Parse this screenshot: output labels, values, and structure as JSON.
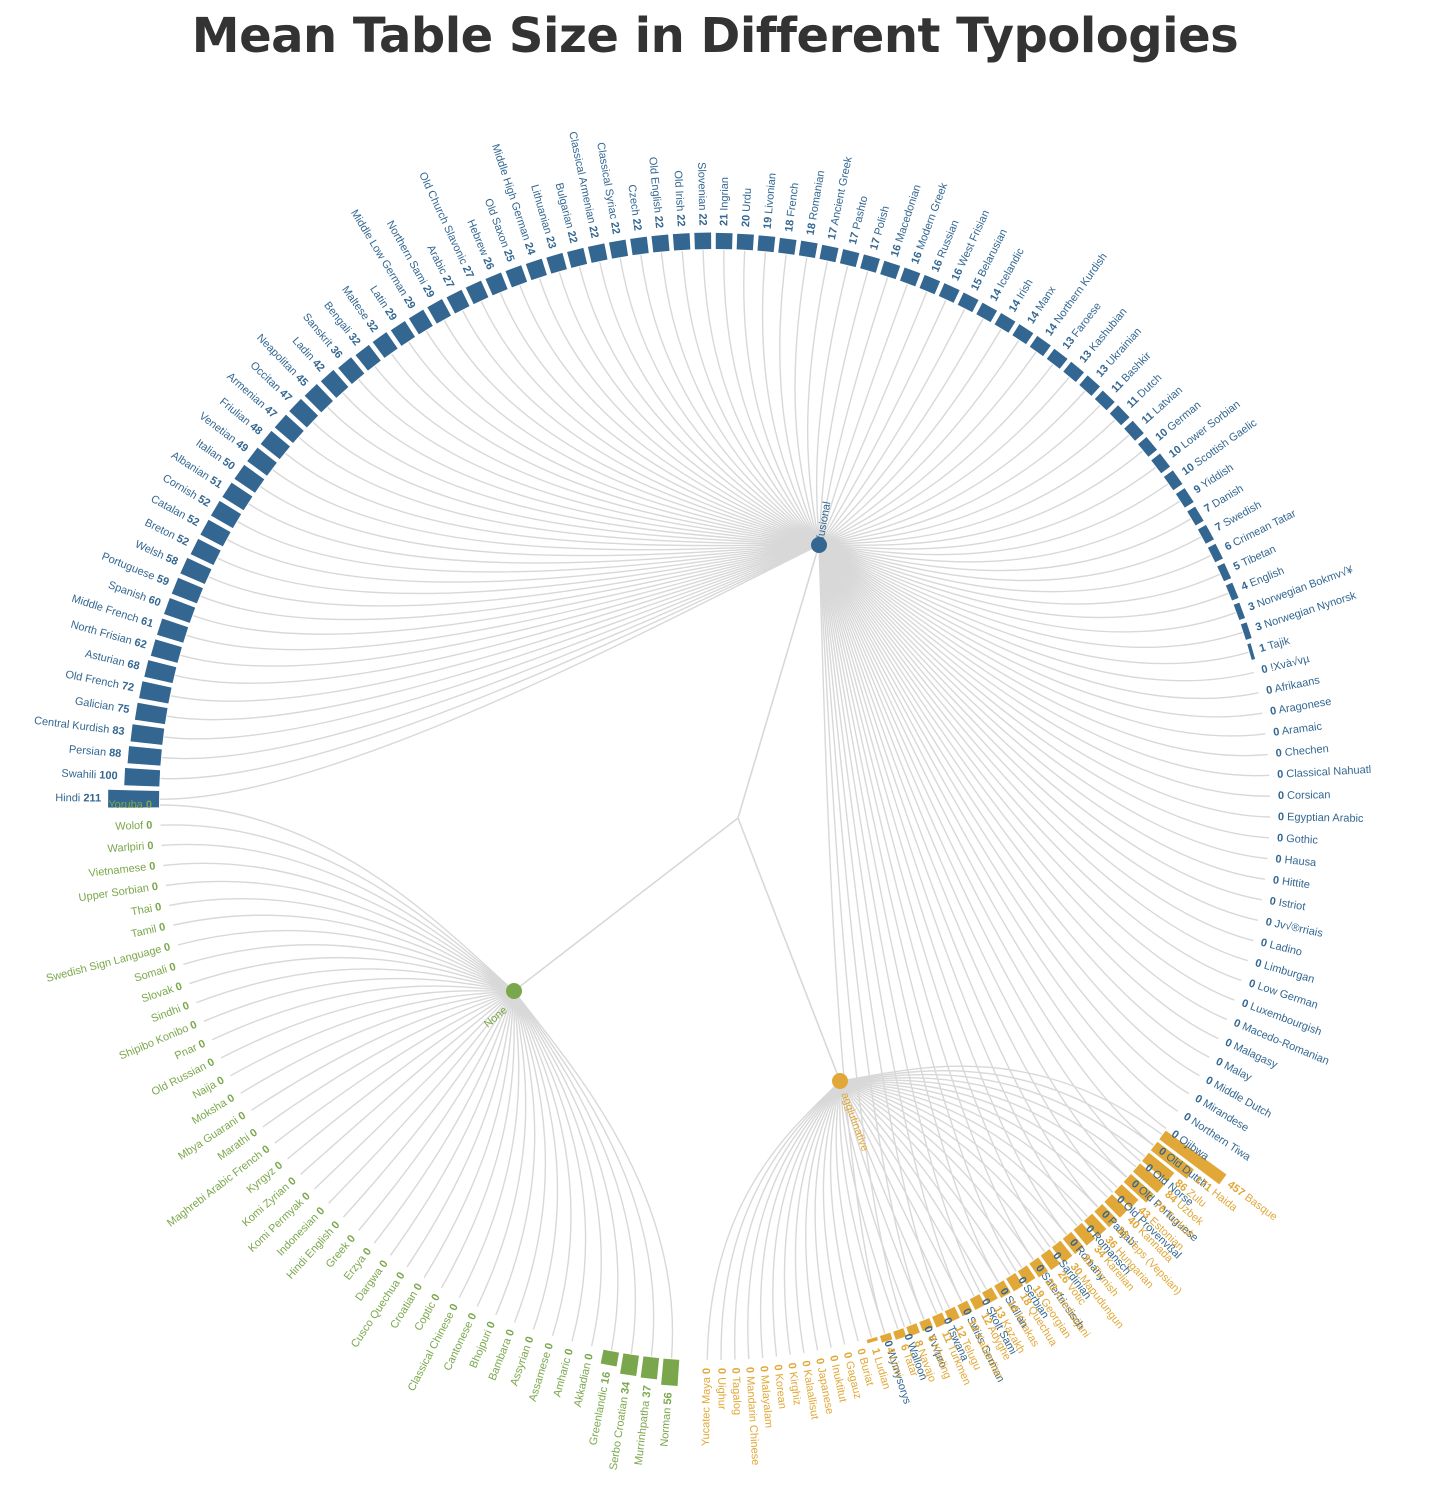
{
  "chart_data": {
    "type": "radial-dendrogram",
    "title": "Mean Table Size in Different Typologies",
    "colors": {
      "fusional": "#336791",
      "None": "#7ba74c",
      "agglutinative": "#e1a837",
      "link": "#d8d8d8",
      "title": "#333333"
    },
    "groups": [
      {
        "name": "fusional",
        "color": "#336791",
        "leaves": [
          {
            "label": "Hindi",
            "value": 211
          },
          {
            "label": "Swahili",
            "value": 100
          },
          {
            "label": "Persian",
            "value": 88
          },
          {
            "label": "Central Kurdish",
            "value": 83
          },
          {
            "label": "Galician",
            "value": 75
          },
          {
            "label": "Old French",
            "value": 72
          },
          {
            "label": "Asturian",
            "value": 68
          },
          {
            "label": "North Frisian",
            "value": 62
          },
          {
            "label": "Middle French",
            "value": 61
          },
          {
            "label": "Spanish",
            "value": 60
          },
          {
            "label": "Portuguese",
            "value": 59
          },
          {
            "label": "Welsh",
            "value": 58
          },
          {
            "label": "Breton",
            "value": 52
          },
          {
            "label": "Catalan",
            "value": 52
          },
          {
            "label": "Cornish",
            "value": 52
          },
          {
            "label": "Albanian",
            "value": 51
          },
          {
            "label": "Italian",
            "value": 50
          },
          {
            "label": "Venetian",
            "value": 49
          },
          {
            "label": "Friulian",
            "value": 48
          },
          {
            "label": "Armenian",
            "value": 47
          },
          {
            "label": "Occitan",
            "value": 47
          },
          {
            "label": "Neapolitan",
            "value": 45
          },
          {
            "label": "Ladin",
            "value": 42
          },
          {
            "label": "Sanskrit",
            "value": 36
          },
          {
            "label": "Bengali",
            "value": 32
          },
          {
            "label": "Maltese",
            "value": 32
          },
          {
            "label": "Latin",
            "value": 29
          },
          {
            "label": "Middle Low German",
            "value": 29
          },
          {
            "label": "Northern Sami",
            "value": 29
          },
          {
            "label": "Arabic",
            "value": 27
          },
          {
            "label": "Old Church Slavonic",
            "value": 27
          },
          {
            "label": "Hebrew",
            "value": 26
          },
          {
            "label": "Old Saxon",
            "value": 25
          },
          {
            "label": "Middle High German",
            "value": 24
          },
          {
            "label": "Lithuanian",
            "value": 23
          },
          {
            "label": "Bulgarian",
            "value": 22
          },
          {
            "label": "Classical Armenian",
            "value": 22
          },
          {
            "label": "Classical Syriac",
            "value": 22
          },
          {
            "label": "Czech",
            "value": 22
          },
          {
            "label": "Old English",
            "value": 22
          },
          {
            "label": "Old Irish",
            "value": 22
          },
          {
            "label": "Slovenian",
            "value": 22
          },
          {
            "label": "Ingrian",
            "value": 21
          },
          {
            "label": "Urdu",
            "value": 20
          },
          {
            "label": "Livonian",
            "value": 19
          },
          {
            "label": "French",
            "value": 18
          },
          {
            "label": "Romanian",
            "value": 18
          },
          {
            "label": "Ancient Greek",
            "value": 17
          },
          {
            "label": "Pashto",
            "value": 17
          },
          {
            "label": "Polish",
            "value": 17
          },
          {
            "label": "Macedonian",
            "value": 16
          },
          {
            "label": "Modern Greek",
            "value": 16
          },
          {
            "label": "Russian",
            "value": 16
          },
          {
            "label": "West Frisian",
            "value": 16
          },
          {
            "label": "Belarusian",
            "value": 15
          },
          {
            "label": "Icelandic",
            "value": 14
          },
          {
            "label": "Irish",
            "value": 14
          },
          {
            "label": "Manx",
            "value": 14
          },
          {
            "label": "Northern Kurdish",
            "value": 14
          },
          {
            "label": "Faroese",
            "value": 13
          },
          {
            "label": "Kashubian",
            "value": 13
          },
          {
            "label": "Ukrainian",
            "value": 13
          },
          {
            "label": "Bashkir",
            "value": 11
          },
          {
            "label": "Dutch",
            "value": 11
          },
          {
            "label": "Latvian",
            "value": 11
          },
          {
            "label": "German",
            "value": 10
          },
          {
            "label": "Lower Sorbian",
            "value": 10
          },
          {
            "label": "Scottish Gaelic",
            "value": 10
          },
          {
            "label": "Yiddish",
            "value": 9
          },
          {
            "label": "Danish",
            "value": 7
          },
          {
            "label": "Swedish",
            "value": 7
          },
          {
            "label": "Crimean Tatar",
            "value": 6
          },
          {
            "label": "Tibetan",
            "value": 5
          },
          {
            "label": "English",
            "value": 4
          },
          {
            "label": "Norwegian Bokmv√¥",
            "value": 3
          },
          {
            "label": "Norwegian Nynorsk",
            "value": 3
          },
          {
            "label": "Tajik",
            "value": 1
          },
          {
            "label": "!Xvà√vµ",
            "value": 0
          },
          {
            "label": "Afrikaans",
            "value": 0
          },
          {
            "label": "Aragonese",
            "value": 0
          },
          {
            "label": "Aramaic",
            "value": 0
          },
          {
            "label": "Chechen",
            "value": 0
          },
          {
            "label": "Classical Nahuatl",
            "value": 0
          },
          {
            "label": "Corsican",
            "value": 0
          },
          {
            "label": "Egyptian Arabic",
            "value": 0
          },
          {
            "label": "Gothic",
            "value": 0
          },
          {
            "label": "Hausa",
            "value": 0
          },
          {
            "label": "Hittite",
            "value": 0
          },
          {
            "label": "Istriot",
            "value": 0
          },
          {
            "label": "Jv√®rriais",
            "value": 0
          },
          {
            "label": "Ladino",
            "value": 0
          },
          {
            "label": "Limburgan",
            "value": 0
          },
          {
            "label": "Low German",
            "value": 0
          },
          {
            "label": "Luxembourgish",
            "value": 0
          },
          {
            "label": "Macedo-Romanian",
            "value": 0
          },
          {
            "label": "Malagasy",
            "value": 0
          },
          {
            "label": "Malay",
            "value": 0
          },
          {
            "label": "Middle Dutch",
            "value": 0
          },
          {
            "label": "Mirandese",
            "value": 0
          },
          {
            "label": "Northern Tiwa",
            "value": 0
          },
          {
            "label": "Ojibwa",
            "value": 0
          },
          {
            "label": "Old Dutch",
            "value": 0
          },
          {
            "label": "Old Norse",
            "value": 0
          },
          {
            "label": "Old Portuguese",
            "value": 0
          },
          {
            "label": "Old Provenvßal",
            "value": 0
          },
          {
            "label": "Panjabi",
            "value": 0
          },
          {
            "label": "Romansch",
            "value": 0
          },
          {
            "label": "Romany",
            "value": 0
          },
          {
            "label": "Sardinian",
            "value": 0
          },
          {
            "label": "Saterfriesisch",
            "value": 0
          },
          {
            "label": "Serbian",
            "value": 0
          },
          {
            "label": "Sicilian",
            "value": 0
          },
          {
            "label": "Skolt Sami",
            "value": 0
          },
          {
            "label": "Swiss German",
            "value": 0
          },
          {
            "label": "Tswana",
            "value": 0
          },
          {
            "label": "Vv√µro",
            "value": 0
          },
          {
            "label": "Walloon",
            "value": 0
          },
          {
            "label": "Wymysorys",
            "value": 0
          }
        ]
      },
      {
        "name": "agglutinative",
        "color": "#e1a837",
        "leaves": [
          {
            "label": "Basque",
            "value": 457
          },
          {
            "label": "Haida",
            "value": 171
          },
          {
            "label": "Zulu",
            "value": 86
          },
          {
            "label": "Uzbek",
            "value": 84
          },
          {
            "label": "Turkish",
            "value": 76
          },
          {
            "label": "Estonian",
            "value": 43
          },
          {
            "label": "Kannada",
            "value": 40
          },
          {
            "label": "Veps (Vepsian)",
            "value": 38
          },
          {
            "label": "Hungarian",
            "value": 36
          },
          {
            "label": "Karelian",
            "value": 34
          },
          {
            "label": "Finnish",
            "value": 31
          },
          {
            "label": "Mapudungun",
            "value": 30
          },
          {
            "label": "Votic",
            "value": 26
          },
          {
            "label": "Azerbaijani",
            "value": 23
          },
          {
            "label": "Georgian",
            "value": 19
          },
          {
            "label": "Quechua",
            "value": 18
          },
          {
            "label": "Khakas",
            "value": 16
          },
          {
            "label": "Kazakh",
            "value": 13
          },
          {
            "label": "Adyghe",
            "value": 12
          },
          {
            "label": "Kabardian",
            "value": 12
          },
          {
            "label": "Telugu",
            "value": 12
          },
          {
            "label": "Turkmen",
            "value": 11
          },
          {
            "label": "Khaling",
            "value": 8
          },
          {
            "label": "Navajo",
            "value": 8
          },
          {
            "label": "Tatar",
            "value": 6
          },
          {
            "label": "Livvi",
            "value": 4
          },
          {
            "label": "Ludian",
            "value": 1
          },
          {
            "label": "Buriat",
            "value": 0
          },
          {
            "label": "Gagauz",
            "value": 0
          },
          {
            "label": "Inuktitut",
            "value": 0
          },
          {
            "label": "Japanese",
            "value": 0
          },
          {
            "label": "Kalaallisut",
            "value": 0
          },
          {
            "label": "Kirghiz",
            "value": 0
          },
          {
            "label": "Korean",
            "value": 0
          },
          {
            "label": "Malayalam",
            "value": 0
          },
          {
            "label": "Mandarin Chinese",
            "value": 0
          },
          {
            "label": "Tagalog",
            "value": 0
          },
          {
            "label": "Uighur",
            "value": 0
          },
          {
            "label": "Yucatec Maya",
            "value": 0
          }
        ]
      },
      {
        "name": "None",
        "color": "#7ba74c",
        "leaves": [
          {
            "label": "Norman",
            "value": 56
          },
          {
            "label": "Murrinhpatha",
            "value": 37
          },
          {
            "label": "Serbo Croatian",
            "value": 34
          },
          {
            "label": "Greenlandic",
            "value": 16
          },
          {
            "label": "Akkadian",
            "value": 0
          },
          {
            "label": "Amharic",
            "value": 0
          },
          {
            "label": "Assamese",
            "value": 0
          },
          {
            "label": "Assyrian",
            "value": 0
          },
          {
            "label": "Bambara",
            "value": 0
          },
          {
            "label": "Bhojpuri",
            "value": 0
          },
          {
            "label": "Cantonese",
            "value": 0
          },
          {
            "label": "Classical Chinese",
            "value": 0
          },
          {
            "label": "Coptic",
            "value": 0
          },
          {
            "label": "Croatian",
            "value": 0
          },
          {
            "label": "Cusco Quechua",
            "value": 0
          },
          {
            "label": "Dargwa",
            "value": 0
          },
          {
            "label": "Erzya",
            "value": 0
          },
          {
            "label": "Greek",
            "value": 0
          },
          {
            "label": "Hindi English",
            "value": 0
          },
          {
            "label": "Indonesian",
            "value": 0
          },
          {
            "label": "Komi Permyak",
            "value": 0
          },
          {
            "label": "Komi Zyrian",
            "value": 0
          },
          {
            "label": "Kyrgyz",
            "value": 0
          },
          {
            "label": "Maghrebi Arabic French",
            "value": 0
          },
          {
            "label": "Marathi",
            "value": 0
          },
          {
            "label": "Mbya Guarani",
            "value": 0
          },
          {
            "label": "Moksha",
            "value": 0
          },
          {
            "label": "Naija",
            "value": 0
          },
          {
            "label": "Old Russian",
            "value": 0
          },
          {
            "label": "Pnar",
            "value": 0
          },
          {
            "label": "Shipibo Konibo",
            "value": 0
          },
          {
            "label": "Sindhi",
            "value": 0
          },
          {
            "label": "Slovak",
            "value": 0
          },
          {
            "label": "Somali",
            "value": 0
          },
          {
            "label": "Swedish Sign Language",
            "value": 0
          },
          {
            "label": "Tamil",
            "value": 0
          },
          {
            "label": "Thai",
            "value": 0
          },
          {
            "label": "Upper Sorbian",
            "value": 0
          },
          {
            "label": "Vietnamese",
            "value": 0
          },
          {
            "label": "Warlpiri",
            "value": 0
          },
          {
            "label": "Wolof",
            "value": 0
          },
          {
            "label": "Yoruba",
            "value": 0
          }
        ]
      }
    ]
  }
}
